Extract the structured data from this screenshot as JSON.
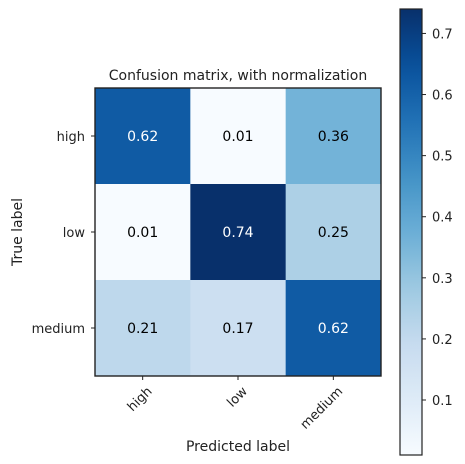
{
  "chart_data": {
    "type": "heatmap",
    "title": "Confusion matrix, with normalization",
    "xlabel": "Predicted label",
    "ylabel": "True label",
    "x_categories": [
      "high",
      "low",
      "medium"
    ],
    "y_categories": [
      "high",
      "low",
      "medium"
    ],
    "values": [
      [
        0.62,
        0.01,
        0.36
      ],
      [
        0.01,
        0.74,
        0.25
      ],
      [
        0.21,
        0.17,
        0.62
      ]
    ],
    "value_range": [
      0.01,
      0.74
    ],
    "colormap": "Blues",
    "colorbar": {
      "ticks": [
        0.1,
        0.2,
        0.3,
        0.4,
        0.5,
        0.6,
        0.7
      ],
      "tick_labels": [
        "0.1",
        "0.2",
        "0.3",
        "0.4",
        "0.5",
        "0.6",
        "0.7"
      ],
      "range": [
        0.01,
        0.74
      ]
    },
    "grid": false,
    "text_color_dark": "#000000",
    "text_color_light": "#ffffff"
  }
}
